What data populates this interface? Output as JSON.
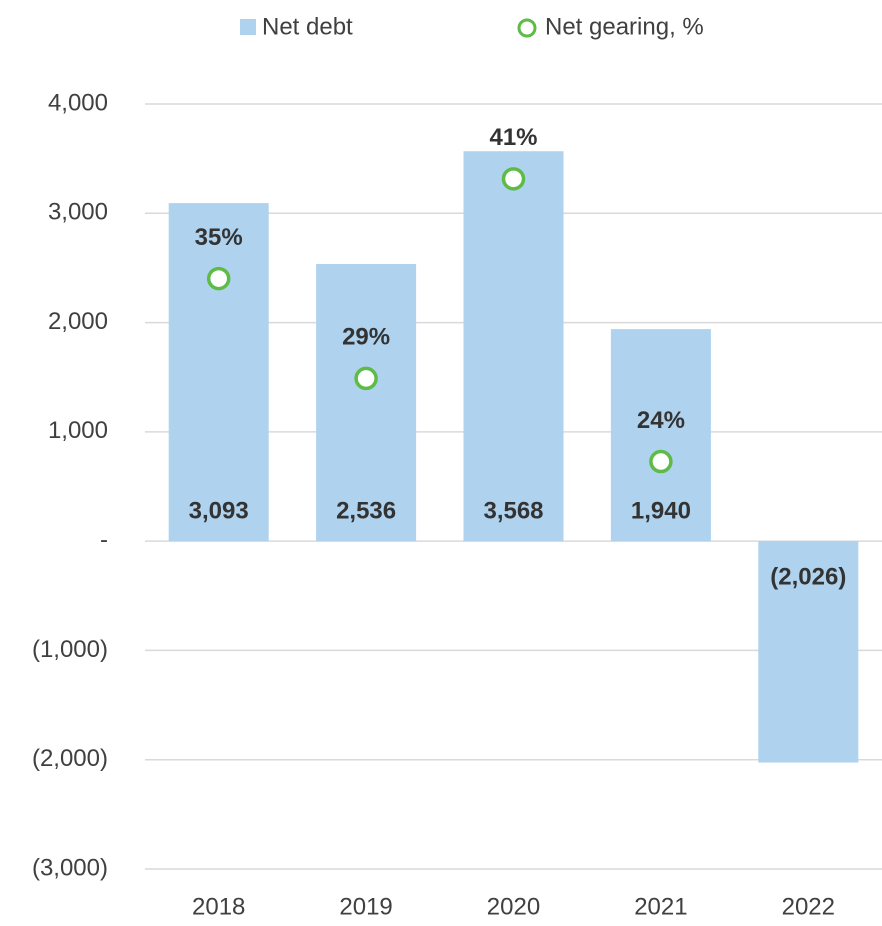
{
  "chart_data": {
    "type": "bar",
    "categories": [
      "2018",
      "2019",
      "2020",
      "2021",
      "2022"
    ],
    "series": [
      {
        "name": "Net debt",
        "type": "bar",
        "color": "#afd3ee",
        "values": [
          3093,
          2536,
          3568,
          1940,
          -2026
        ],
        "value_labels": [
          "3,093",
          "2,536",
          "3,568",
          "1,940",
          "(2,026)"
        ]
      },
      {
        "name": "Net gearing, %",
        "type": "scatter",
        "axis": "y2",
        "color": "#5dbb46",
        "values": [
          35,
          29,
          41,
          24,
          null
        ],
        "value_labels": [
          "35%",
          "29%",
          "41%",
          "24%",
          null
        ]
      }
    ],
    "ylim": [
      -3000,
      4000
    ],
    "yticks": [
      {
        "value": -3000,
        "label": "(3,000)"
      },
      {
        "value": -2000,
        "label": "(2,000)"
      },
      {
        "value": -1000,
        "label": "(1,000)"
      },
      {
        "value": 0,
        "label": "-"
      },
      {
        "value": 1000,
        "label": "1,000"
      },
      {
        "value": 2000,
        "label": "2,000"
      },
      {
        "value": 3000,
        "label": "3,000"
      },
      {
        "value": 4000,
        "label": "4,000"
      }
    ],
    "y2lim": [
      -0.5,
      45.5
    ],
    "grid": true,
    "legend": "top"
  }
}
